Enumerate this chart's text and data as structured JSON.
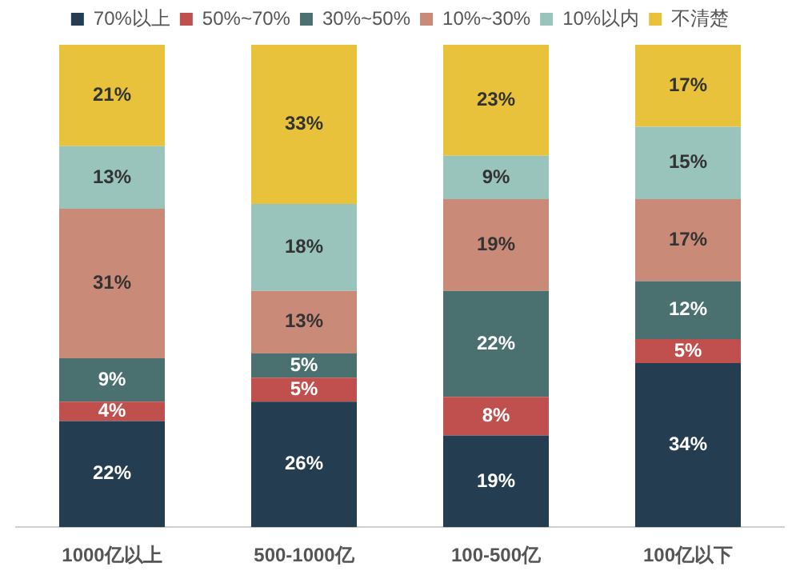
{
  "chart_data": {
    "type": "bar",
    "stacked": true,
    "legend": "top",
    "categories": [
      "1000亿以上",
      "500-1000亿",
      "100-500亿",
      "100亿以下"
    ],
    "series": [
      {
        "name": "70%以上",
        "color": "#253d50",
        "values": [
          22,
          26,
          19,
          34
        ],
        "value_labels": [
          "22%",
          "26%",
          "19%",
          "34%"
        ]
      },
      {
        "name": "50%~70%",
        "color": "#c0504d",
        "values": [
          4,
          5,
          8,
          5
        ],
        "value_labels": [
          "4%",
          "5%",
          "8%",
          "5%"
        ]
      },
      {
        "name": "30%~50%",
        "color": "#4a7070",
        "values": [
          9,
          5,
          22,
          12
        ],
        "value_labels": [
          "9%",
          "5%",
          "22%",
          "12%"
        ]
      },
      {
        "name": "10%~30%",
        "color": "#c98b78",
        "values": [
          31,
          13,
          19,
          17
        ],
        "value_labels": [
          "31%",
          "13%",
          "19%",
          "17%"
        ]
      },
      {
        "name": "10%以内",
        "color": "#98c4bc",
        "values": [
          13,
          18,
          9,
          15
        ],
        "value_labels": [
          "13%",
          "18%",
          "9%",
          "15%"
        ]
      },
      {
        "name": "不清楚",
        "color": "#e8c23a",
        "values": [
          21,
          33,
          23,
          17
        ],
        "value_labels": [
          "21%",
          "33%",
          "23%",
          "17%"
        ]
      }
    ]
  }
}
